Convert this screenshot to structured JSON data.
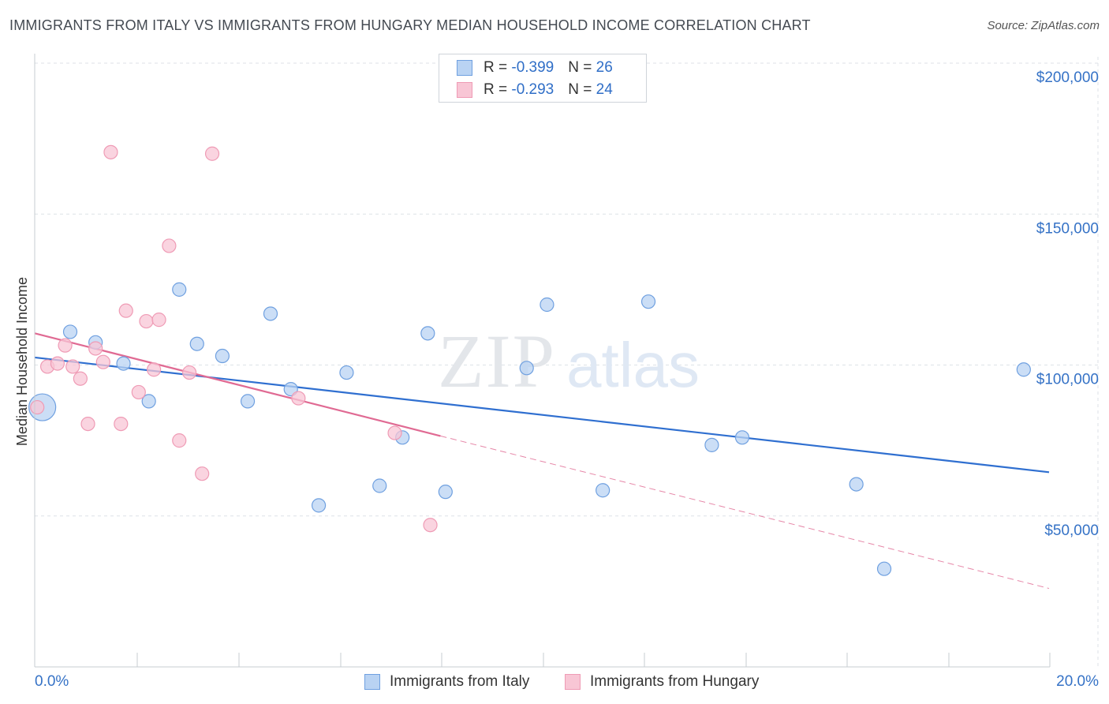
{
  "title": "IMMIGRANTS FROM ITALY VS IMMIGRANTS FROM HUNGARY MEDIAN HOUSEHOLD INCOME CORRELATION CHART",
  "source": "Source: ZipAtlas.com",
  "watermark": {
    "left": "ZIP",
    "right": "atlas"
  },
  "stats": [
    {
      "r_label": "R = ",
      "r_value": "-0.399",
      "n_label": "N = ",
      "n_value": "26",
      "color": "#a9c8f0"
    },
    {
      "r_label": "R = ",
      "r_value": "-0.293",
      "n_label": "N = ",
      "n_value": "24",
      "color": "#f7b7c9"
    }
  ],
  "chart_data": {
    "type": "scatter",
    "title": "IMMIGRANTS FROM ITALY VS IMMIGRANTS FROM HUNGARY MEDIAN HOUSEHOLD INCOME CORRELATION CHART",
    "xlabel": "",
    "ylabel": "Median Household Income",
    "xlim": [
      0,
      20
    ],
    "ylim": [
      0,
      210000
    ],
    "x_tick_labels": [
      "0.0%",
      "20.0%"
    ],
    "y_ticks": [
      50000,
      100000,
      150000,
      200000
    ],
    "y_tick_labels": [
      "$50,000",
      "$100,000",
      "$150,000",
      "$200,000"
    ],
    "grid": true,
    "legend_position": "bottom",
    "series": [
      {
        "name": "Immigrants from Italy",
        "color": "#6fa0e0",
        "fill": "#b9d3f3",
        "line_color": "#2f6fd0",
        "trend": {
          "x": [
            0,
            20
          ],
          "y": [
            102500,
            64500
          ],
          "dashed_from": null
        },
        "points": [
          {
            "x": 0.15,
            "y": 86000,
            "big": true
          },
          {
            "x": 0.7,
            "y": 111000
          },
          {
            "x": 1.2,
            "y": 107500
          },
          {
            "x": 1.75,
            "y": 100500
          },
          {
            "x": 2.25,
            "y": 88000
          },
          {
            "x": 2.85,
            "y": 125000
          },
          {
            "x": 3.2,
            "y": 107000
          },
          {
            "x": 3.7,
            "y": 103000
          },
          {
            "x": 4.2,
            "y": 88000
          },
          {
            "x": 4.65,
            "y": 117000
          },
          {
            "x": 5.05,
            "y": 92000
          },
          {
            "x": 5.6,
            "y": 53500
          },
          {
            "x": 6.15,
            "y": 97500
          },
          {
            "x": 6.8,
            "y": 60000
          },
          {
            "x": 7.25,
            "y": 76000
          },
          {
            "x": 7.75,
            "y": 110500
          },
          {
            "x": 8.1,
            "y": 58000
          },
          {
            "x": 9.7,
            "y": 99000
          },
          {
            "x": 10.1,
            "y": 120000
          },
          {
            "x": 11.2,
            "y": 58500
          },
          {
            "x": 12.1,
            "y": 121000
          },
          {
            "x": 13.35,
            "y": 73500
          },
          {
            "x": 13.95,
            "y": 76000
          },
          {
            "x": 16.2,
            "y": 60500
          },
          {
            "x": 16.75,
            "y": 32500
          },
          {
            "x": 19.5,
            "y": 98500
          }
        ]
      },
      {
        "name": "Immigrants from Hungary",
        "color": "#ef9bb5",
        "fill": "#f8c6d5",
        "line_color": "#e06a93",
        "trend": {
          "x": [
            0,
            8
          ],
          "y": [
            110500,
            76500
          ],
          "dashed_to_x": 20,
          "dashed_to_y": 26000
        },
        "points": [
          {
            "x": 0.05,
            "y": 86000
          },
          {
            "x": 0.25,
            "y": 99500
          },
          {
            "x": 0.45,
            "y": 100500
          },
          {
            "x": 0.6,
            "y": 106500
          },
          {
            "x": 0.75,
            "y": 99500
          },
          {
            "x": 0.9,
            "y": 95500
          },
          {
            "x": 1.05,
            "y": 80500
          },
          {
            "x": 1.2,
            "y": 105500
          },
          {
            "x": 1.35,
            "y": 101000
          },
          {
            "x": 1.5,
            "y": 170500
          },
          {
            "x": 1.7,
            "y": 80500
          },
          {
            "x": 1.8,
            "y": 118000
          },
          {
            "x": 2.05,
            "y": 91000
          },
          {
            "x": 2.2,
            "y": 114500
          },
          {
            "x": 2.35,
            "y": 98500
          },
          {
            "x": 2.45,
            "y": 115000
          },
          {
            "x": 2.65,
            "y": 139500
          },
          {
            "x": 2.85,
            "y": 75000
          },
          {
            "x": 3.05,
            "y": 97500
          },
          {
            "x": 3.3,
            "y": 64000
          },
          {
            "x": 3.5,
            "y": 170000
          },
          {
            "x": 5.2,
            "y": 89000
          },
          {
            "x": 7.1,
            "y": 77500
          },
          {
            "x": 7.8,
            "y": 47000
          }
        ]
      }
    ]
  }
}
